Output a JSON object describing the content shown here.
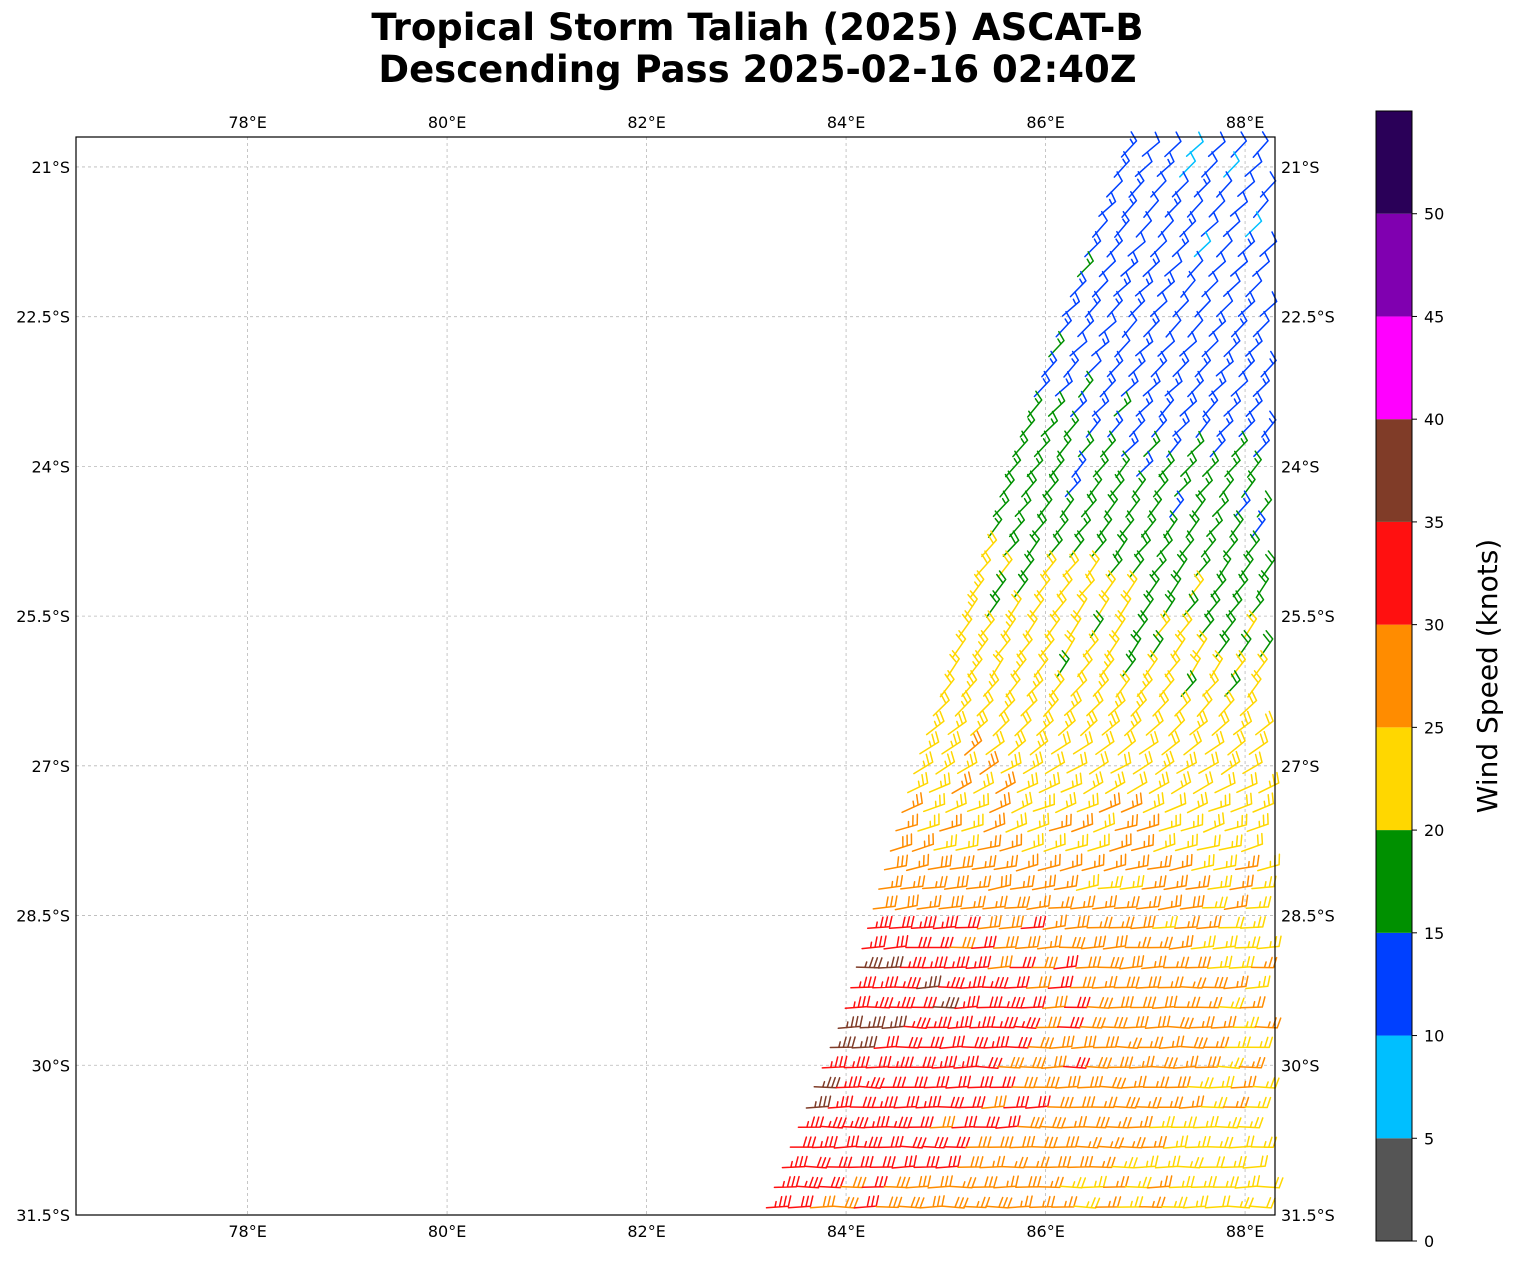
{
  "chart_data": {
    "type": "wind-barb-map",
    "title_line1": "Tropical Storm Taliah (2025) ASCAT-B",
    "title_line2": "Descending Pass 2025-02-16 02:40Z",
    "lon_range": [
      76.28,
      88.3
    ],
    "lat_range": [
      -31.5,
      -20.7
    ],
    "lon_ticks": [
      78,
      80,
      82,
      84,
      86,
      88
    ],
    "lon_tick_labels": [
      "78°E",
      "80°E",
      "82°E",
      "84°E",
      "86°E",
      "88°E"
    ],
    "lat_ticks": [
      -21,
      -22.5,
      -24,
      -25.5,
      -27,
      -28.5,
      -30,
      -31.5
    ],
    "lat_tick_labels": [
      "21°S",
      "22.5°S",
      "24°S",
      "25.5°S",
      "27°S",
      "28.5°S",
      "30°S",
      "31.5°S"
    ],
    "grid": true,
    "colorbar": {
      "label": "Wind Speed (knots)",
      "ticks": [
        0,
        5,
        10,
        15,
        20,
        25,
        30,
        35,
        40,
        45,
        50
      ],
      "tick_labels": [
        "0",
        "5",
        "10",
        "15",
        "20",
        "25",
        "30",
        "35",
        "40",
        "45",
        "50"
      ],
      "range": [
        0,
        55
      ],
      "bins": [
        {
          "min": 0,
          "max": 5,
          "color": "#555555"
        },
        {
          "min": 5,
          "max": 10,
          "color": "#00bfff"
        },
        {
          "min": 10,
          "max": 15,
          "color": "#0040ff"
        },
        {
          "min": 15,
          "max": 20,
          "color": "#009000"
        },
        {
          "min": 20,
          "max": 25,
          "color": "#ffd700"
        },
        {
          "min": 25,
          "max": 30,
          "color": "#ff8c00"
        },
        {
          "min": 30,
          "max": 35,
          "color": "#ff1010"
        },
        {
          "min": 35,
          "max": 40,
          "color": "#803c28"
        },
        {
          "min": 40,
          "max": 45,
          "color": "#ff00ff"
        },
        {
          "min": 45,
          "max": 50,
          "color": "#8000b0"
        },
        {
          "min": 50,
          "max": 55,
          "color": "#2a0058"
        }
      ]
    },
    "swath": {
      "left_edge": [
        [
          -20.7,
          86.8
        ],
        [
          -24.0,
          85.6
        ],
        [
          -27.0,
          84.7
        ],
        [
          -29.5,
          84.0
        ],
        [
          -31.5,
          83.2
        ]
      ],
      "right_edge_lon": 88.3,
      "wind_field": [
        {
          "lat": -20.7,
          "speed": 12,
          "dir": 225
        },
        {
          "lat": -23.0,
          "speed": 14,
          "dir": 225
        },
        {
          "lat": -24.5,
          "speed": 18,
          "dir": 220
        },
        {
          "lat": -26.0,
          "speed": 21,
          "dir": 215
        },
        {
          "lat": -27.5,
          "speed": 24,
          "dir": 250
        },
        {
          "lat": -28.5,
          "speed": 27,
          "dir": 265
        },
        {
          "lat": -29.5,
          "speed": 30,
          "dir": 270
        },
        {
          "lat": -31.5,
          "speed": 26,
          "dir": 270
        }
      ]
    }
  }
}
